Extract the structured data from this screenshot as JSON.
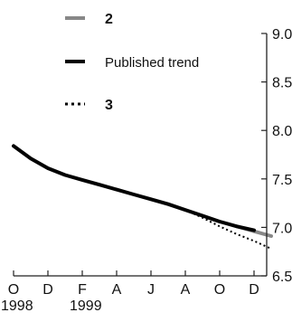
{
  "chart_data": {
    "type": "line",
    "title": "",
    "xlabel": "",
    "ylabel": "",
    "x_ticks": [
      "O",
      "D",
      "F",
      "A",
      "J",
      "A",
      "O",
      "D"
    ],
    "x_tick_positions": [
      0,
      2,
      4,
      6,
      8,
      10,
      12,
      14
    ],
    "x_year_labels": [
      {
        "label": "1998",
        "at": 0
      },
      {
        "label": "1999",
        "at": 4
      }
    ],
    "xlim": [
      0,
      15
    ],
    "ylim": [
      6.5,
      9.0
    ],
    "y_ticks": [
      "6.5",
      "7.0",
      "7.5",
      "8.0",
      "8.5",
      "9.0"
    ],
    "y_axis_side": "right",
    "grid": false,
    "legend_position": "top-left",
    "series": [
      {
        "name": "Published trend",
        "color": "#000000",
        "style": "solid-thick",
        "x": [
          0,
          1,
          2,
          3,
          4,
          5,
          6,
          7,
          8,
          9,
          10,
          11,
          12,
          13,
          14
        ],
        "y": [
          7.84,
          7.71,
          7.61,
          7.54,
          7.49,
          7.44,
          7.39,
          7.34,
          7.29,
          7.24,
          7.18,
          7.12,
          7.06,
          7.01,
          6.97
        ]
      },
      {
        "name": "2",
        "color": "#888888",
        "style": "solid-thick",
        "x": [
          13,
          14,
          15
        ],
        "y": [
          7.01,
          6.96,
          6.91
        ]
      },
      {
        "name": "3",
        "color": "#000000",
        "style": "dotted",
        "x": [
          10,
          11,
          12,
          13,
          14,
          15
        ],
        "y": [
          7.18,
          7.1,
          7.01,
          6.93,
          6.86,
          6.78
        ]
      }
    ]
  }
}
